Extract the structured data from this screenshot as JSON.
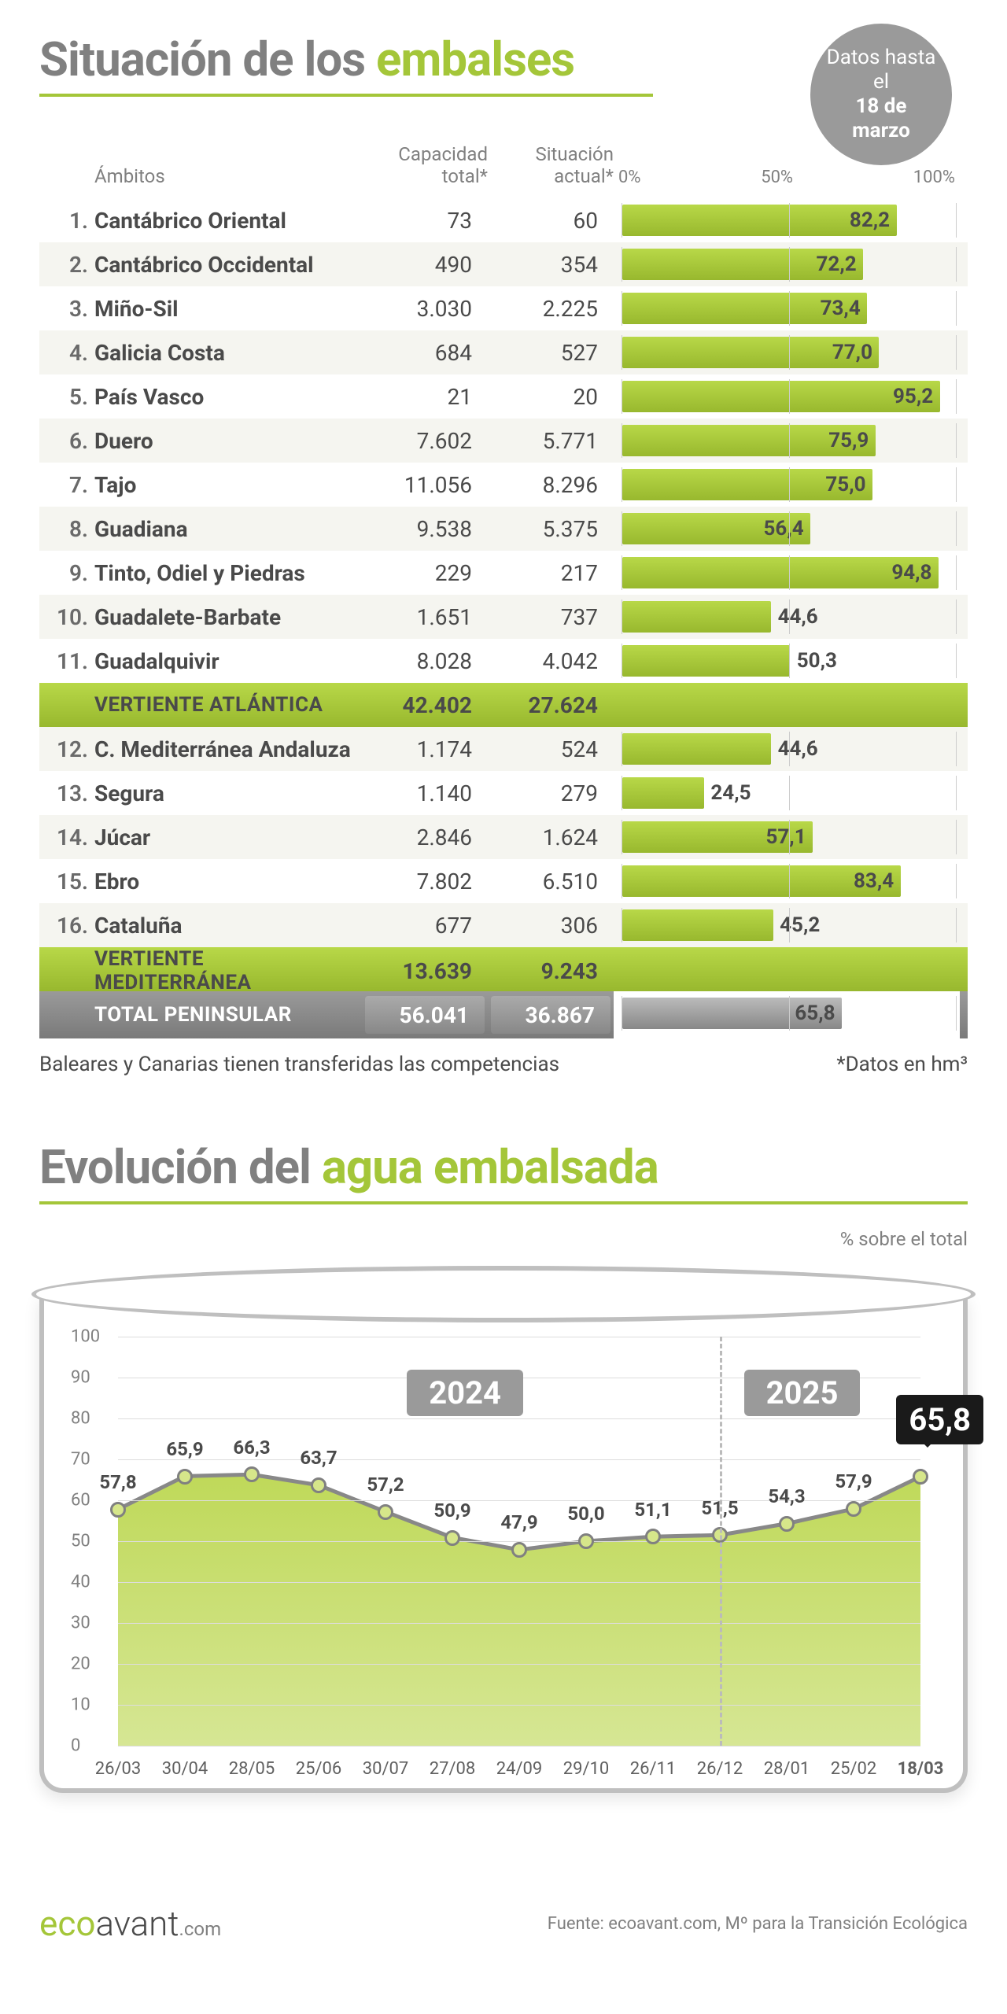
{
  "title_a": "Situación de los ",
  "title_b": "embalses",
  "date_badge_pre": "Datos hasta el",
  "date_badge_bold": "18 de marzo",
  "headers": {
    "ambitos": "Ámbitos",
    "cap": "Capacidad total*",
    "sit": "Situación actual*",
    "axis0": "0%",
    "axis50": "50%",
    "axis100": "100%"
  },
  "colors": {
    "green": "#a4c639",
    "grey": "#9a9a9a"
  },
  "rows": [
    {
      "n": "1.",
      "name": "Cantábrico Oriental",
      "cap": "73",
      "sit": "60",
      "pct": 82.2,
      "label": "82,2"
    },
    {
      "n": "2.",
      "name": "Cantábrico Occidental",
      "cap": "490",
      "sit": "354",
      "pct": 72.2,
      "label": "72,2"
    },
    {
      "n": "3.",
      "name": "Miño-Sil",
      "cap": "3.030",
      "sit": "2.225",
      "pct": 73.4,
      "label": "73,4"
    },
    {
      "n": "4.",
      "name": "Galicia Costa",
      "cap": "684",
      "sit": "527",
      "pct": 77.0,
      "label": "77,0"
    },
    {
      "n": "5.",
      "name": "País Vasco",
      "cap": "21",
      "sit": "20",
      "pct": 95.2,
      "label": "95,2"
    },
    {
      "n": "6.",
      "name": "Duero",
      "cap": "7.602",
      "sit": "5.771",
      "pct": 75.9,
      "label": "75,9"
    },
    {
      "n": "7.",
      "name": "Tajo",
      "cap": "11.056",
      "sit": "8.296",
      "pct": 75.0,
      "label": "75,0"
    },
    {
      "n": "8.",
      "name": "Guadiana",
      "cap": "9.538",
      "sit": "5.375",
      "pct": 56.4,
      "label": "56,4"
    },
    {
      "n": "9.",
      "name": "Tinto, Odiel y Piedras",
      "cap": "229",
      "sit": "217",
      "pct": 94.8,
      "label": "94,8"
    },
    {
      "n": "10.",
      "name": "Guadalete-Barbate",
      "cap": "1.651",
      "sit": "737",
      "pct": 44.6,
      "label": "44,6"
    },
    {
      "n": "11.",
      "name": "Guadalquivir",
      "cap": "8.028",
      "sit": "4.042",
      "pct": 50.3,
      "label": "50,3"
    },
    {
      "type": "subtotal",
      "name": "VERTIENTE ATLÁNTICA",
      "cap": "42.402",
      "sit": "27.624"
    },
    {
      "n": "12.",
      "name": "C. Mediterránea Andaluza",
      "cap": "1.174",
      "sit": "524",
      "pct": 44.6,
      "label": "44,6"
    },
    {
      "n": "13.",
      "name": "Segura",
      "cap": "1.140",
      "sit": "279",
      "pct": 24.5,
      "label": "24,5"
    },
    {
      "n": "14.",
      "name": "Júcar",
      "cap": "2.846",
      "sit": "1.624",
      "pct": 57.1,
      "label": "57,1"
    },
    {
      "n": "15.",
      "name": "Ebro",
      "cap": "7.802",
      "sit": "6.510",
      "pct": 83.4,
      "label": "83,4"
    },
    {
      "n": "16.",
      "name": "Cataluña",
      "cap": "677",
      "sit": "306",
      "pct": 45.2,
      "label": "45,2"
    },
    {
      "type": "subtotal",
      "name": "VERTIENTE MEDITERRÁNEA",
      "cap": "13.639",
      "sit": "9.243"
    },
    {
      "type": "total",
      "name": "TOTAL PENINSULAR",
      "cap": "56.041",
      "sit": "36.867",
      "pct": 65.8,
      "label": "65,8"
    }
  ],
  "footnote_left": "Baleares y Canarias tienen transferidas las competencias",
  "footnote_right": "*Datos en hm³",
  "title2_a": "Evolución del ",
  "title2_b": "agua embalsada",
  "chart_sub": "% sobre el total",
  "chart": {
    "ylim": [
      0,
      100
    ],
    "ytick_step": 10,
    "grid_color": "#dddddd",
    "line_color": "#888888",
    "fill_top": "rgba(180,210,60,0.85)",
    "fill_bottom": "rgba(180,210,60,0.55)",
    "marker_fill": "#d6e68a",
    "marker_stroke": "#808080",
    "year_2024": "2024",
    "year_2025": "2025",
    "final_label": "65,8",
    "divider_index": 9,
    "points": [
      {
        "x": "26/03",
        "v": 57.8,
        "l": "57,8"
      },
      {
        "x": "30/04",
        "v": 65.9,
        "l": "65,9"
      },
      {
        "x": "28/05",
        "v": 66.3,
        "l": "66,3"
      },
      {
        "x": "25/06",
        "v": 63.7,
        "l": "63,7"
      },
      {
        "x": "30/07",
        "v": 57.2,
        "l": "57,2"
      },
      {
        "x": "27/08",
        "v": 50.9,
        "l": "50,9"
      },
      {
        "x": "24/09",
        "v": 47.9,
        "l": "47,9"
      },
      {
        "x": "29/10",
        "v": 50.0,
        "l": "50,0"
      },
      {
        "x": "26/11",
        "v": 51.1,
        "l": "51,1"
      },
      {
        "x": "26/12",
        "v": 51.5,
        "l": "51,5"
      },
      {
        "x": "28/01",
        "v": 54.3,
        "l": "54,3"
      },
      {
        "x": "25/02",
        "v": 57.9,
        "l": "57,9"
      },
      {
        "x": "18/03",
        "v": 65.8,
        "l": "65,8",
        "bold": true
      }
    ]
  },
  "logo_a": "eco",
  "logo_b": "avant",
  "logo_c": ".com",
  "source": "Fuente: ecoavant.com, Mº para la Transición Ecológica"
}
